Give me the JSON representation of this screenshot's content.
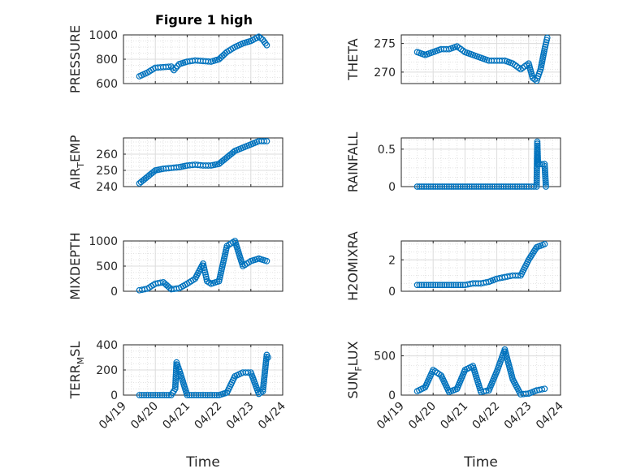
{
  "figure": {
    "title": "Figure 1 high"
  },
  "style": {
    "marker_color": "#0072BD",
    "axis_color": "#262626",
    "grid_color": "#dcdcdc",
    "background": "#ffffff"
  },
  "x_axis": {
    "label": "Time",
    "range": [
      "2019-04-19",
      "2019-04-24"
    ],
    "ticks": [
      "04/19",
      "04/20",
      "04/21",
      "04/22",
      "04/23",
      "04/24"
    ],
    "scale": "date",
    "minor_grid": true
  },
  "chart_data": [
    {
      "type": "scatter",
      "ylabel": "PRESSURE",
      "ylim": [
        600,
        1000
      ],
      "yticks": [
        "600",
        "800",
        "1000"
      ],
      "yticks_values": [
        600,
        800,
        1000
      ],
      "x": [
        "2019-04-19T12:00",
        "2019-04-19T18:00",
        "2019-04-20T00:00",
        "2019-04-20T06:00",
        "2019-04-20T12:00",
        "2019-04-20T14:00",
        "2019-04-20T18:00",
        "2019-04-21T00:00",
        "2019-04-21T06:00",
        "2019-04-21T12:00",
        "2019-04-21T18:00",
        "2019-04-22T00:00",
        "2019-04-22T06:00",
        "2019-04-22T12:00",
        "2019-04-22T18:00",
        "2019-04-23T00:00",
        "2019-04-23T06:00",
        "2019-04-23T09:00",
        "2019-04-23T12:00"
      ],
      "y": [
        660,
        690,
        730,
        735,
        740,
        710,
        760,
        780,
        790,
        785,
        780,
        800,
        860,
        900,
        930,
        950,
        985,
        960,
        915
      ]
    },
    {
      "type": "scatter",
      "ylabel": "THETA",
      "ylim": [
        268,
        276.5
      ],
      "yticks": [
        "270",
        "275"
      ],
      "yticks_values": [
        270,
        275
      ],
      "x": [
        "2019-04-19T12:00",
        "2019-04-19T18:00",
        "2019-04-20T00:00",
        "2019-04-20T06:00",
        "2019-04-20T12:00",
        "2019-04-20T18:00",
        "2019-04-21T00:00",
        "2019-04-21T06:00",
        "2019-04-21T12:00",
        "2019-04-21T18:00",
        "2019-04-22T00:00",
        "2019-04-22T06:00",
        "2019-04-22T12:00",
        "2019-04-22T18:00",
        "2019-04-23T00:00",
        "2019-04-23T03:00",
        "2019-04-23T06:00",
        "2019-04-23T09:00",
        "2019-04-23T12:00",
        "2019-04-23T14:00"
      ],
      "y": [
        273.5,
        273,
        273.5,
        274,
        274,
        274.5,
        273.5,
        273,
        272.5,
        272,
        272,
        272,
        271.5,
        270.5,
        271.5,
        269,
        268.5,
        270.5,
        274,
        276
      ]
    },
    {
      "type": "scatter",
      "ylabel": "AIR_TEMP",
      "ylabel_parts": [
        "AIR",
        "T",
        "EMP"
      ],
      "ylim": [
        240,
        270
      ],
      "yticks": [
        "240",
        "250",
        "260"
      ],
      "yticks_values": [
        240,
        250,
        260
      ],
      "x": [
        "2019-04-19T12:00",
        "2019-04-19T18:00",
        "2019-04-20T00:00",
        "2019-04-20T06:00",
        "2019-04-20T12:00",
        "2019-04-20T18:00",
        "2019-04-21T00:00",
        "2019-04-21T06:00",
        "2019-04-21T12:00",
        "2019-04-21T18:00",
        "2019-04-22T00:00",
        "2019-04-22T06:00",
        "2019-04-22T12:00",
        "2019-04-22T18:00",
        "2019-04-23T00:00",
        "2019-04-23T06:00",
        "2019-04-23T12:00"
      ],
      "y": [
        242,
        246,
        250,
        251,
        251.5,
        252,
        253,
        253.5,
        253,
        253,
        254,
        258,
        262,
        264,
        266,
        268,
        268
      ]
    },
    {
      "type": "scatter",
      "ylabel": "RAINFALL",
      "ylim": [
        0,
        0.65
      ],
      "yticks": [
        "0",
        "0.5"
      ],
      "yticks_values": [
        0,
        0.5
      ],
      "x": [
        "2019-04-19T12:00",
        "2019-04-20T00:00",
        "2019-04-20T12:00",
        "2019-04-21T00:00",
        "2019-04-21T12:00",
        "2019-04-22T00:00",
        "2019-04-22T12:00",
        "2019-04-23T00:00",
        "2019-04-23T06:00",
        "2019-04-23T06:30",
        "2019-04-23T07:00",
        "2019-04-23T08:00",
        "2019-04-23T10:00",
        "2019-04-23T12:00",
        "2019-04-23T13:00"
      ],
      "y": [
        0,
        0,
        0,
        0,
        0,
        0,
        0,
        0,
        0,
        0.6,
        0.3,
        0.3,
        0.3,
        0.3,
        0
      ]
    },
    {
      "type": "scatter",
      "ylabel": "MIXDEPTH",
      "ylim": [
        0,
        1000
      ],
      "yticks": [
        "0",
        "500",
        "1000"
      ],
      "yticks_values": [
        0,
        500,
        1000
      ],
      "x": [
        "2019-04-19T12:00",
        "2019-04-19T18:00",
        "2019-04-20T00:00",
        "2019-04-20T06:00",
        "2019-04-20T12:00",
        "2019-04-20T18:00",
        "2019-04-21T00:00",
        "2019-04-21T06:00",
        "2019-04-21T12:00",
        "2019-04-21T15:00",
        "2019-04-21T18:00",
        "2019-04-22T00:00",
        "2019-04-22T06:00",
        "2019-04-22T12:00",
        "2019-04-22T18:00",
        "2019-04-23T00:00",
        "2019-04-23T06:00",
        "2019-04-23T12:00"
      ],
      "y": [
        20,
        50,
        150,
        180,
        40,
        60,
        150,
        250,
        550,
        200,
        150,
        200,
        900,
        1000,
        500,
        600,
        650,
        600
      ]
    },
    {
      "type": "scatter",
      "ylabel": "H2OMIXRA",
      "ylim": [
        0,
        3.2
      ],
      "yticks": [
        "0",
        "2"
      ],
      "yticks_values": [
        0,
        2
      ],
      "x": [
        "2019-04-19T12:00",
        "2019-04-20T00:00",
        "2019-04-20T12:00",
        "2019-04-21T00:00",
        "2019-04-21T06:00",
        "2019-04-21T12:00",
        "2019-04-21T18:00",
        "2019-04-22T00:00",
        "2019-04-22T06:00",
        "2019-04-22T12:00",
        "2019-04-22T18:00",
        "2019-04-23T00:00",
        "2019-04-23T06:00",
        "2019-04-23T12:00"
      ],
      "y": [
        0.4,
        0.4,
        0.4,
        0.4,
        0.5,
        0.5,
        0.6,
        0.8,
        0.9,
        1.0,
        1.0,
        2.0,
        2.8,
        3.0
      ]
    },
    {
      "type": "scatter",
      "ylabel": "TERR_MSL",
      "ylabel_parts": [
        "TERR",
        "M",
        "SL"
      ],
      "ylim": [
        0,
        400
      ],
      "yticks": [
        "0",
        "200",
        "400"
      ],
      "yticks_values": [
        0,
        200,
        400
      ],
      "x": [
        "2019-04-19T12:00",
        "2019-04-20T00:00",
        "2019-04-20T12:00",
        "2019-04-20T15:00",
        "2019-04-20T16:00",
        "2019-04-20T18:00",
        "2019-04-21T00:00",
        "2019-04-21T12:00",
        "2019-04-22T00:00",
        "2019-04-22T06:00",
        "2019-04-22T12:00",
        "2019-04-22T18:00",
        "2019-04-23T00:00",
        "2019-04-23T06:00",
        "2019-04-23T09:00",
        "2019-04-23T12:00",
        "2019-04-23T13:00"
      ],
      "y": [
        0,
        0,
        0,
        50,
        260,
        200,
        0,
        0,
        0,
        20,
        150,
        180,
        180,
        10,
        30,
        320,
        300
      ]
    },
    {
      "type": "scatter",
      "ylabel": "SUN_FLUX",
      "ylabel_parts": [
        "SUN",
        "F",
        "LUX"
      ],
      "ylim": [
        0,
        640
      ],
      "yticks": [
        "0",
        "500"
      ],
      "yticks_values": [
        0,
        500
      ],
      "x": [
        "2019-04-19T12:00",
        "2019-04-19T18:00",
        "2019-04-20T00:00",
        "2019-04-20T06:00",
        "2019-04-20T12:00",
        "2019-04-20T18:00",
        "2019-04-21T00:00",
        "2019-04-21T06:00",
        "2019-04-21T12:00",
        "2019-04-21T18:00",
        "2019-04-22T00:00",
        "2019-04-22T06:00",
        "2019-04-22T12:00",
        "2019-04-22T18:00",
        "2019-04-23T00:00",
        "2019-04-23T06:00",
        "2019-04-23T12:00"
      ],
      "y": [
        50,
        100,
        320,
        250,
        40,
        80,
        320,
        370,
        40,
        60,
        300,
        580,
        200,
        10,
        20,
        60,
        80
      ]
    }
  ]
}
